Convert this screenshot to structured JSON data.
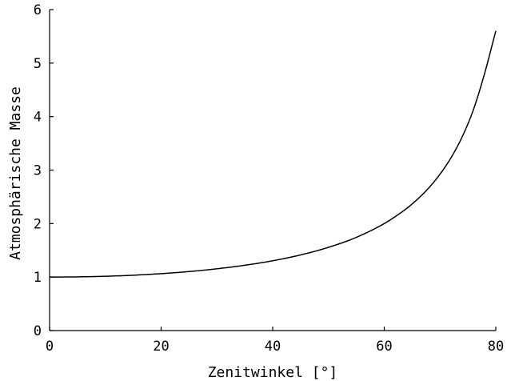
{
  "chart_data": {
    "type": "line",
    "title": "",
    "xlabel": "Zenitwinkel [°]",
    "ylabel": "Atmosphärische Masse",
    "xlim": [
      0,
      80
    ],
    "ylim": [
      0,
      6
    ],
    "xticks": [
      0,
      20,
      40,
      60,
      80
    ],
    "yticks": [
      0,
      1,
      2,
      3,
      4,
      5,
      6
    ],
    "grid": false,
    "series": [
      {
        "x": [
          0,
          5,
          10,
          15,
          20,
          25,
          30,
          35,
          40,
          45,
          50,
          55,
          60,
          62,
          64,
          66,
          68,
          70,
          72,
          74,
          76,
          78,
          80
        ],
        "y": [
          1.0,
          1.004,
          1.015,
          1.035,
          1.064,
          1.103,
          1.155,
          1.221,
          1.305,
          1.414,
          1.556,
          1.743,
          2.0,
          2.133,
          2.281,
          2.459,
          2.669,
          2.924,
          3.236,
          3.628,
          4.134,
          4.81,
          5.6
        ],
        "color": "#000000"
      }
    ]
  }
}
